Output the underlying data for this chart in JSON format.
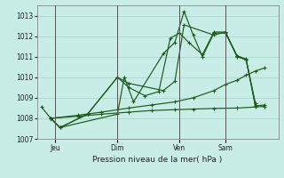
{
  "title": "Pression niveau de la mer( hPa )",
  "bg_color": "#c8ece6",
  "grid_color": "#a8d8cc",
  "line_color": "#1a5c1a",
  "ylim": [
    1007.0,
    1013.5
  ],
  "yticks": [
    1007,
    1008,
    1009,
    1010,
    1011,
    1012,
    1013
  ],
  "day_labels": [
    "Jeu",
    "Dim",
    "Ven",
    "Sam"
  ],
  "vline_positions": [
    0.08,
    0.35,
    0.62,
    0.82
  ],
  "series1_x": [
    0.02,
    0.06,
    0.1,
    0.35,
    0.38,
    0.42,
    0.55,
    0.6,
    0.64,
    0.68,
    0.72,
    0.77,
    0.82,
    0.87,
    0.91,
    0.95,
    0.99
  ],
  "series1_y": [
    1008.55,
    1008.0,
    1007.55,
    1008.2,
    1010.0,
    1008.8,
    1011.15,
    1011.7,
    1013.2,
    1012.05,
    1011.0,
    1012.15,
    1012.15,
    1011.05,
    1010.88,
    1008.6,
    1008.65
  ],
  "series2_x": [
    0.06,
    0.1,
    0.22,
    0.35,
    0.4,
    0.47,
    0.53,
    0.58,
    0.62,
    0.66,
    0.72,
    0.77,
    0.82,
    0.87,
    0.91,
    0.95
  ],
  "series2_y": [
    1008.0,
    1007.55,
    1008.2,
    1010.0,
    1009.5,
    1009.1,
    1009.3,
    1011.9,
    1012.15,
    1011.7,
    1011.1,
    1012.2,
    1012.2,
    1011.05,
    1010.85,
    1008.65
  ],
  "series3_x": [
    0.06,
    0.1,
    0.22,
    0.35,
    0.4,
    0.55,
    0.6,
    0.64,
    0.77,
    0.82,
    0.87,
    0.91,
    0.95
  ],
  "series3_y": [
    1008.0,
    1007.55,
    1008.2,
    1010.0,
    1009.7,
    1009.35,
    1009.8,
    1012.55,
    1012.05,
    1012.2,
    1011.0,
    1010.85,
    1008.75
  ],
  "series4_x": [
    0.06,
    0.18,
    0.28,
    0.4,
    0.5,
    0.6,
    0.68,
    0.77,
    0.82,
    0.87,
    0.91,
    0.95,
    0.99
  ],
  "series4_y": [
    1008.0,
    1008.15,
    1008.3,
    1008.5,
    1008.65,
    1008.8,
    1009.0,
    1009.35,
    1009.65,
    1009.85,
    1010.1,
    1010.3,
    1010.45
  ],
  "series5_x": [
    0.06,
    0.18,
    0.28,
    0.4,
    0.5,
    0.6,
    0.68,
    0.77,
    0.87,
    0.95,
    0.99
  ],
  "series5_y": [
    1008.0,
    1008.1,
    1008.2,
    1008.3,
    1008.38,
    1008.42,
    1008.45,
    1008.48,
    1008.5,
    1008.55,
    1008.58
  ]
}
